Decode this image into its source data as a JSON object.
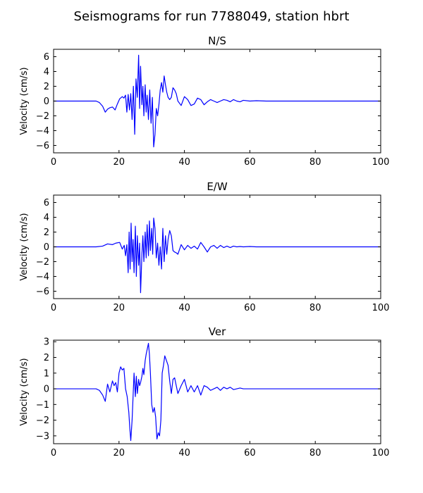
{
  "figure": {
    "title": "Seismograms for run 7788049, station hbrt"
  },
  "chart_data": [
    {
      "type": "line",
      "title": "N/S",
      "ylabel": "Velocity (cm/s)",
      "xlabel": "",
      "xlim": [
        0,
        100
      ],
      "ylim": [
        -7,
        7
      ],
      "xticks": [
        0,
        20,
        40,
        60,
        80,
        100
      ],
      "yticks": [
        -6,
        -4,
        -2,
        0,
        2,
        4,
        6
      ],
      "color": "#0000ff",
      "series": [
        {
          "x": [
            0,
            13,
            14,
            15,
            15.8,
            16.5,
            17.2,
            18,
            18.8,
            19.5,
            20.2,
            21,
            21.5,
            22,
            22.4,
            22.8,
            23.2,
            23.6,
            24,
            24.4,
            24.8,
            25.2,
            25.6,
            26,
            26.3,
            26.6,
            27,
            27.3,
            27.6,
            28,
            28.3,
            28.6,
            29,
            29.4,
            29.8,
            30.2,
            30.6,
            31,
            31.4,
            31.8,
            32.2,
            32.6,
            33,
            33.4,
            33.8,
            34.2,
            34.6,
            35,
            35.5,
            36,
            36.5,
            37,
            37.5,
            38,
            39,
            40,
            41,
            42,
            43,
            44,
            45,
            46,
            47,
            48,
            49,
            50,
            51,
            52,
            53,
            54,
            55,
            56,
            57,
            58,
            60,
            62,
            65,
            70,
            100
          ],
          "y": [
            0,
            0,
            -0.2,
            -0.7,
            -1.5,
            -1.1,
            -0.9,
            -0.8,
            -1.2,
            -0.4,
            0.3,
            0.6,
            0.4,
            0.8,
            -1.5,
            0.9,
            -1.2,
            1.0,
            -2.5,
            2.0,
            -4.5,
            3.0,
            0.5,
            6.2,
            -1.0,
            4.7,
            -0.5,
            2.0,
            -2.0,
            2.2,
            -1.5,
            0.8,
            -2.5,
            1.5,
            -3.0,
            0.5,
            -6.2,
            -4.5,
            -1.0,
            -2.0,
            -0.5,
            1.5,
            2.5,
            1.2,
            3.4,
            2.2,
            1.2,
            0.5,
            0.2,
            0.5,
            1.8,
            1.5,
            1.0,
            0.0,
            -0.6,
            0.6,
            0.2,
            -0.6,
            -0.4,
            0.4,
            0.2,
            -0.5,
            -0.1,
            0.2,
            0.0,
            -0.2,
            0.0,
            0.2,
            0.1,
            -0.1,
            0.2,
            0.0,
            -0.1,
            0.1,
            0.0,
            0.05,
            0.0,
            0.0,
            0.0
          ]
        }
      ]
    },
    {
      "type": "line",
      "title": "E/W",
      "ylabel": "Velocity (cm/s)",
      "xlabel": "",
      "xlim": [
        0,
        100
      ],
      "ylim": [
        -7,
        7
      ],
      "xticks": [
        0,
        20,
        40,
        60,
        80,
        100
      ],
      "yticks": [
        -6,
        -4,
        -2,
        0,
        2,
        4,
        6
      ],
      "color": "#0000ff",
      "series": [
        {
          "x": [
            0,
            13,
            15,
            16.5,
            18,
            19,
            20.2,
            21,
            21.6,
            22,
            22.4,
            22.8,
            23.1,
            23.4,
            23.7,
            24,
            24.3,
            24.6,
            25,
            25.3,
            25.6,
            26,
            26.3,
            26.6,
            27,
            27.3,
            27.6,
            28,
            28.3,
            28.6,
            29,
            29.3,
            29.6,
            30,
            30.3,
            30.6,
            31,
            31.4,
            31.8,
            32.2,
            32.6,
            33,
            33.4,
            33.8,
            34.2,
            34.6,
            35,
            35.5,
            36,
            36.5,
            37,
            37.5,
            38,
            39,
            40,
            41,
            42,
            43,
            44,
            45,
            46,
            47,
            48,
            49,
            50,
            51,
            52,
            53,
            54,
            55,
            56,
            57,
            58,
            60,
            62,
            65,
            70,
            100
          ],
          "y": [
            0,
            0,
            0.1,
            0.4,
            0.3,
            0.5,
            0.6,
            -0.3,
            0.2,
            -1.2,
            0.3,
            -3.5,
            2.0,
            -3.0,
            3.2,
            -2.0,
            1.0,
            -3.5,
            2.8,
            -4.0,
            1.5,
            -2.5,
            0.5,
            -6.2,
            -1.0,
            1.5,
            -2.0,
            2.0,
            -1.5,
            3.0,
            -1.2,
            3.5,
            -0.5,
            2.5,
            -1.0,
            3.9,
            2.5,
            -1.5,
            0.5,
            -2.5,
            0.0,
            -3.0,
            2.5,
            -2.0,
            1.5,
            -1.0,
            1.0,
            2.2,
            1.5,
            -0.5,
            -0.7,
            -0.8,
            -1.0,
            0.3,
            -0.4,
            0.2,
            -0.2,
            0.1,
            -0.3,
            0.6,
            0.0,
            -0.7,
            0.0,
            0.2,
            -0.2,
            0.2,
            -0.1,
            0.1,
            -0.1,
            0.1,
            0.0,
            0.05,
            0.0,
            0.05,
            0.0,
            0.0,
            0.0,
            0.0
          ]
        }
      ]
    },
    {
      "type": "line",
      "title": "Ver",
      "ylabel": "Velocity (cm/s)",
      "xlabel": "",
      "xlim": [
        0,
        100
      ],
      "ylim": [
        -3.5,
        3.1
      ],
      "xticks": [
        0,
        20,
        40,
        60,
        80,
        100
      ],
      "yticks": [
        -3,
        -2,
        -1,
        0,
        1,
        2,
        3
      ],
      "color": "#0000ff",
      "series": [
        {
          "x": [
            0,
            13,
            14,
            15,
            15.8,
            16.5,
            17.2,
            18,
            18.5,
            19,
            19.5,
            20,
            20.5,
            21,
            21.5,
            22,
            22.5,
            23,
            23.3,
            23.6,
            24,
            24.3,
            24.6,
            25,
            25.3,
            25.6,
            26,
            26.3,
            26.6,
            27,
            27.3,
            27.6,
            28,
            28.3,
            28.6,
            29,
            29.3,
            29.6,
            30,
            30.4,
            30.8,
            31.2,
            31.6,
            32,
            32.4,
            32.8,
            33.2,
            33.6,
            34,
            34.5,
            35,
            35.5,
            36,
            36.5,
            37,
            38,
            39,
            40,
            41,
            42,
            43,
            44,
            45,
            46,
            47,
            48,
            49,
            50,
            51,
            52,
            53,
            54,
            55,
            56,
            57,
            58,
            60,
            62,
            65,
            70,
            100
          ],
          "y": [
            0,
            0,
            -0.1,
            -0.4,
            -0.8,
            0.3,
            -0.2,
            0.5,
            0.2,
            0.4,
            -0.2,
            1.0,
            1.4,
            1.2,
            1.3,
            0.0,
            -0.5,
            -1.5,
            -2.5,
            -3.3,
            -2.0,
            -0.5,
            1.0,
            -0.5,
            0.8,
            -0.3,
            0.6,
            0.2,
            0.4,
            0.8,
            1.3,
            0.9,
            1.8,
            2.2,
            2.5,
            2.9,
            2.2,
            1.0,
            -1.0,
            -1.5,
            -1.2,
            -1.8,
            -3.2,
            -2.8,
            -3.0,
            -2.0,
            1.0,
            1.5,
            2.1,
            1.8,
            1.5,
            0.5,
            -0.3,
            0.6,
            0.7,
            -0.3,
            0.2,
            0.6,
            -0.2,
            0.2,
            -0.2,
            0.2,
            -0.4,
            0.2,
            0.1,
            -0.1,
            0.0,
            0.1,
            -0.1,
            0.1,
            0.0,
            0.1,
            -0.05,
            0.0,
            0.05,
            0.0,
            0.0,
            0.0,
            0.0,
            0.0,
            0.0
          ]
        }
      ]
    }
  ]
}
